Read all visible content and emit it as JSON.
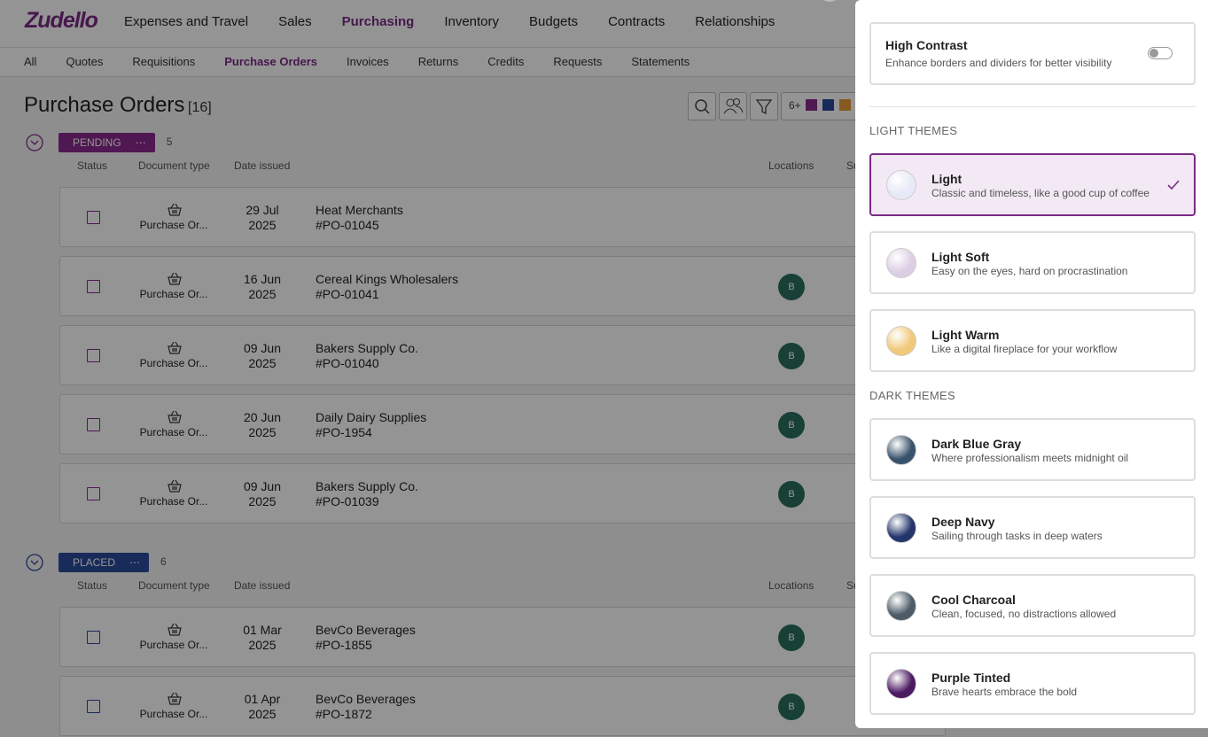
{
  "nav": {
    "logo": "Zudello",
    "items": [
      "Expenses and Travel",
      "Sales",
      "Purchasing",
      "Inventory",
      "Budgets",
      "Contracts",
      "Relationships"
    ],
    "active": 2
  },
  "subnav": {
    "items": [
      "All",
      "Quotes",
      "Requisitions",
      "Purchase Orders",
      "Invoices",
      "Returns",
      "Credits",
      "Requests",
      "Statements"
    ],
    "active": 3
  },
  "page": {
    "title": "Purchase Orders",
    "count": "[16]",
    "filter_count": "6+"
  },
  "groups": [
    {
      "label": "PENDING",
      "count": "5",
      "color": "#8a2a8e",
      "columns": [
        "Status",
        "Document type",
        "Date issued",
        "Locations",
        "Su"
      ],
      "rows": [
        {
          "doc": "Purchase Or...",
          "date": [
            "29 Jul",
            "2025"
          ],
          "supplier": "Heat Merchants",
          "number": "#PO-01045",
          "location": null
        },
        {
          "doc": "Purchase Or...",
          "date": [
            "16 Jun",
            "2025"
          ],
          "supplier": "Cereal Kings Wholesalers",
          "number": "#PO-01041",
          "location": "B"
        },
        {
          "doc": "Purchase Or...",
          "date": [
            "09 Jun",
            "2025"
          ],
          "supplier": "Bakers Supply Co.",
          "number": "#PO-01040",
          "location": "B"
        },
        {
          "doc": "Purchase Or...",
          "date": [
            "20 Jun",
            "2025"
          ],
          "supplier": "Daily Dairy Supplies",
          "number": "#PO-1954",
          "location": "B"
        },
        {
          "doc": "Purchase Or...",
          "date": [
            "09 Jun",
            "2025"
          ],
          "supplier": "Bakers Supply Co.",
          "number": "#PO-01039",
          "location": "B"
        }
      ]
    },
    {
      "label": "PLACED",
      "count": "6",
      "color": "#2c4a9c",
      "columns": [
        "Status",
        "Document type",
        "Date issued",
        "Locations",
        "Su"
      ],
      "rows": [
        {
          "doc": "Purchase Or...",
          "date": [
            "01 Mar",
            "2025"
          ],
          "supplier": "BevCo Beverages",
          "number": "#PO-1855",
          "location": "B"
        },
        {
          "doc": "Purchase Or...",
          "date": [
            "01 Apr",
            "2025"
          ],
          "supplier": "BevCo Beverages",
          "number": "#PO-1872",
          "location": "B"
        }
      ]
    }
  ],
  "panel": {
    "high_contrast": {
      "title": "High Contrast",
      "description": "Enhance borders and dividers for better visibility",
      "enabled": false
    },
    "sections": [
      {
        "title": "LIGHT THEMES",
        "themes": [
          {
            "name": "Light",
            "description": "Classic and timeless, like a good cup of coffee",
            "color": "#e6e9f7",
            "selected": true
          },
          {
            "name": "Light Soft",
            "description": "Easy on the eyes, hard on procrastination",
            "color": "#dccfe4",
            "selected": false
          },
          {
            "name": "Light Warm",
            "description": "Like a digital fireplace for your workflow",
            "color": "#f1c979",
            "selected": false
          }
        ]
      },
      {
        "title": "DARK THEMES",
        "themes": [
          {
            "name": "Dark Blue Gray",
            "description": "Where professionalism meets midnight oil",
            "color": "#3a536c",
            "selected": false
          },
          {
            "name": "Deep Navy",
            "description": "Sailing through tasks in deep waters",
            "color": "#23366c",
            "selected": false
          },
          {
            "name": "Cool Charcoal",
            "description": "Clean, focused, no distractions allowed",
            "color": "#4b5b67",
            "selected": false
          },
          {
            "name": "Purple Tinted",
            "description": "Brave hearts embrace the bold",
            "color": "#4d1a62",
            "selected": false
          }
        ]
      }
    ]
  }
}
